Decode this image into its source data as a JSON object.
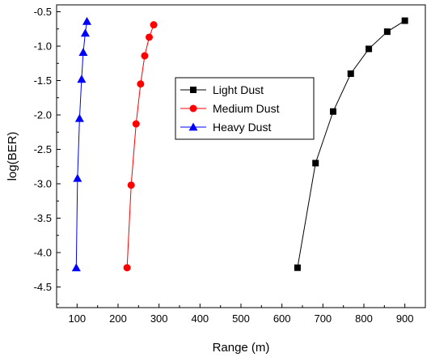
{
  "chart_data": {
    "type": "line",
    "xlabel": "Range (m)",
    "ylabel": "log(BER)",
    "xlim": [
      50,
      950
    ],
    "ylim": [
      -4.8,
      -0.4
    ],
    "xticks": [
      100,
      200,
      300,
      400,
      500,
      600,
      700,
      800,
      900
    ],
    "yticks": [
      -0.5,
      -1.0,
      -1.5,
      -2.0,
      -2.5,
      -3.0,
      -3.5,
      -4.0,
      -4.5
    ],
    "xtick_labels": [
      "100",
      "200",
      "300",
      "400",
      "500",
      "600",
      "700",
      "800",
      "900"
    ],
    "ytick_labels": [
      "-0.5",
      "-1.0",
      "-1.5",
      "-2.0",
      "-2.5",
      "-3.0",
      "-3.5",
      "-4.0",
      "-4.5"
    ],
    "grid": false,
    "legend_position": "center-left",
    "series": [
      {
        "name": "Light Dust",
        "color": "#000000",
        "marker": "square",
        "x": [
          638,
          682,
          725,
          768,
          812,
          857,
          900
        ],
        "y": [
          -4.22,
          -2.7,
          -1.95,
          -1.4,
          -1.04,
          -0.79,
          -0.63
        ]
      },
      {
        "name": "Medium Dust",
        "color": "#ff0000",
        "marker": "circle",
        "x": [
          222,
          232,
          244,
          255,
          265,
          276,
          287
        ],
        "y": [
          -4.22,
          -3.02,
          -2.13,
          -1.55,
          -1.14,
          -0.87,
          -0.69
        ]
      },
      {
        "name": "Heavy Dust",
        "color": "#0000ff",
        "marker": "triangle",
        "x": [
          98,
          101,
          106,
          111,
          115,
          120,
          124
        ],
        "y": [
          -4.22,
          -2.92,
          -2.05,
          -1.48,
          -1.09,
          -0.81,
          -0.64
        ]
      }
    ]
  }
}
